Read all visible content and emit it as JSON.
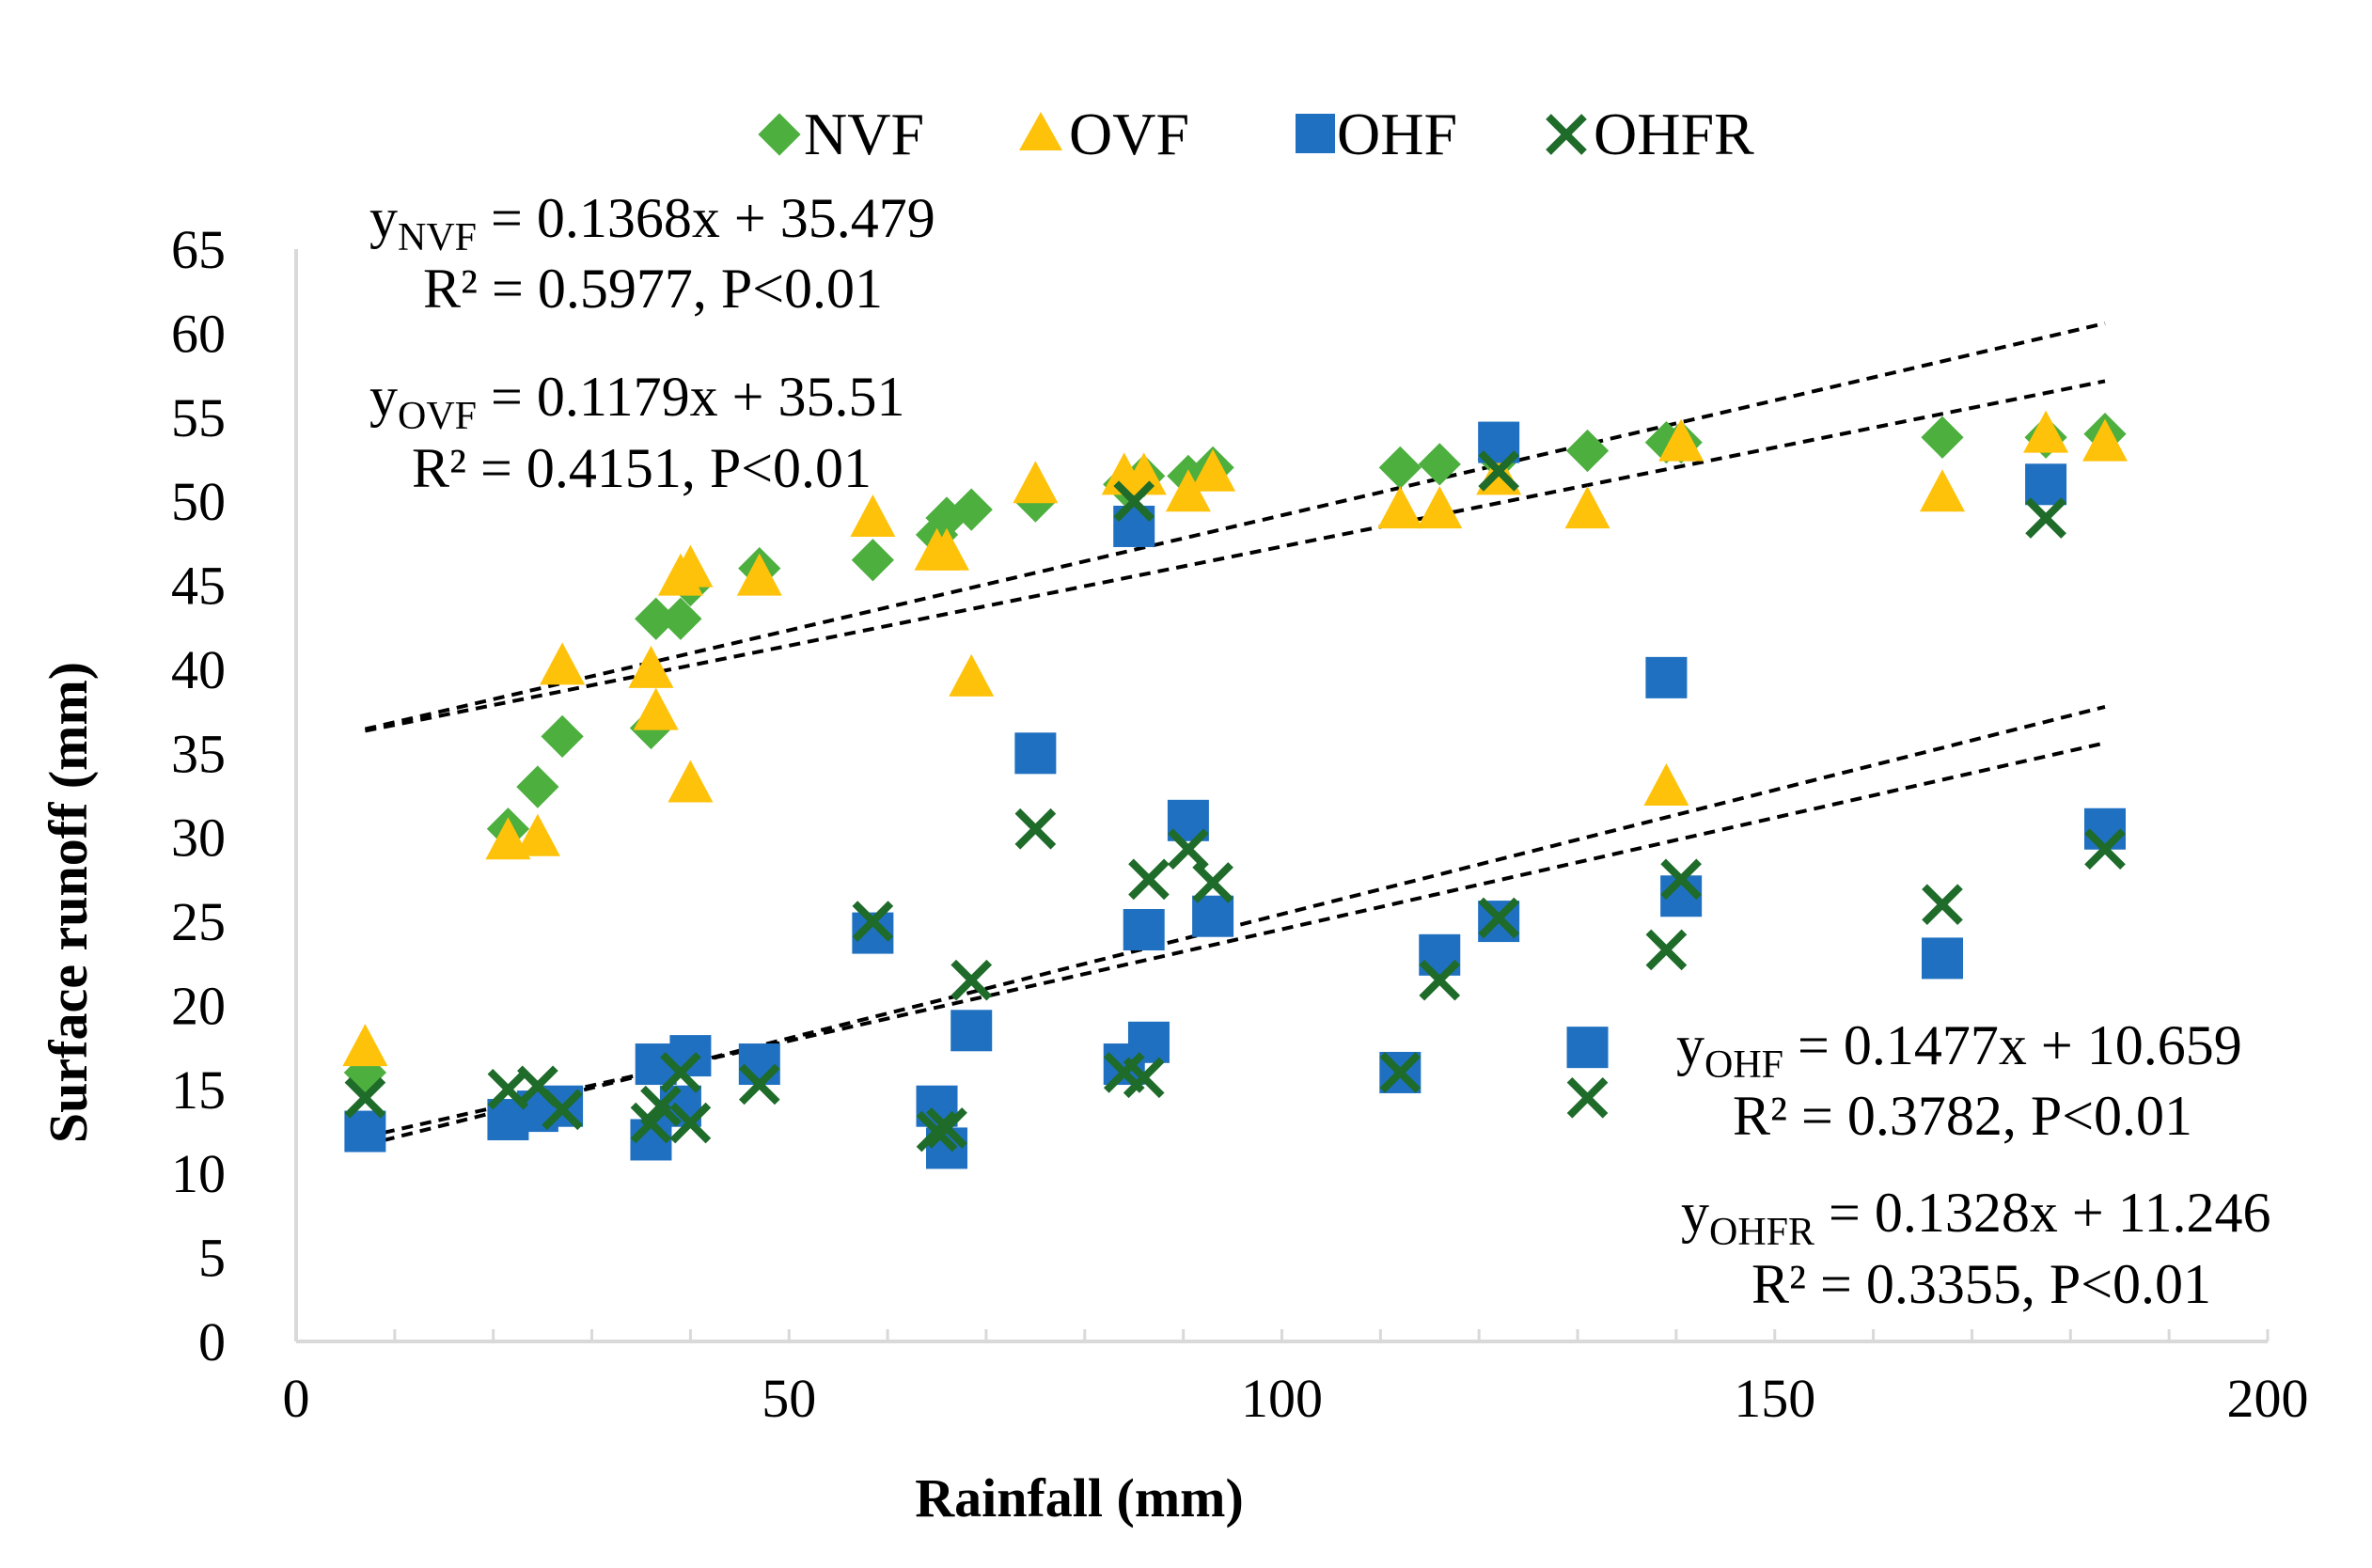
{
  "chart_data": {
    "type": "scatter",
    "xlabel": "Rainfall (mm)",
    "ylabel": "Surface runoff  (mm)",
    "xlim": [
      0,
      200
    ],
    "ylim": [
      0,
      65
    ],
    "xticks": [
      0,
      50,
      100,
      150,
      200
    ],
    "yticks": [
      0,
      5,
      10,
      15,
      20,
      25,
      30,
      35,
      40,
      45,
      50,
      55,
      60,
      65
    ],
    "grid": false,
    "legend_position": "top",
    "colors": {
      "NVF": "#4caf3e",
      "OVF": "#ffc20a",
      "OHF": "#1f70c1",
      "OHFR": "#1e6b2a",
      "trendline": "#000000"
    },
    "series": [
      {
        "name": "NVF",
        "marker": "diamond",
        "x": [
          7,
          21.5,
          24.5,
          27,
          36,
          36.5,
          39,
          40,
          47,
          58.5,
          65,
          66,
          68.5,
          75,
          84,
          86,
          90.5,
          93,
          112,
          116,
          122,
          131,
          139,
          140.5,
          167,
          177.5,
          183.5
        ],
        "y": [
          16,
          30.5,
          33,
          36,
          36.5,
          43,
          43,
          45,
          46,
          46.5,
          48,
          49,
          49.5,
          50,
          51,
          51.5,
          51.5,
          52,
          52,
          52.2,
          52.5,
          53,
          53.5,
          53.5,
          53.8,
          53.8,
          54
        ]
      },
      {
        "name": "OVF",
        "marker": "triangle",
        "x": [
          7,
          21.5,
          24.5,
          27,
          36,
          36.5,
          39,
          40,
          40,
          47,
          58.5,
          65,
          66,
          68.5,
          75,
          84,
          86,
          90.5,
          93,
          112,
          116,
          122,
          131,
          139,
          140.5,
          167,
          177.5,
          183.5
        ],
        "y": [
          17.5,
          29.8,
          30,
          40.2,
          40,
          37.5,
          45.5,
          46,
          33.2,
          45.5,
          49,
          47,
          47,
          39.5,
          51,
          51.5,
          51.5,
          50.5,
          51.7,
          49.5,
          49.5,
          51.5,
          49.5,
          33,
          53.5,
          50.5,
          54,
          53.5
        ]
      },
      {
        "name": "OHF",
        "marker": "square",
        "x": [
          7,
          21.5,
          24.5,
          27,
          36,
          36.5,
          39,
          40,
          47,
          58.5,
          65,
          66,
          68.5,
          75,
          84,
          85,
          86,
          86.5,
          90.5,
          93,
          112,
          116,
          122,
          122,
          131,
          139,
          140.5,
          167,
          177.5,
          183.5
        ],
        "y": [
          12.5,
          13.2,
          13.7,
          14,
          12,
          16.5,
          14,
          17,
          16.5,
          24.3,
          14,
          11.5,
          18.5,
          35,
          16.5,
          48.5,
          24.5,
          17.8,
          31,
          25.3,
          16,
          23,
          25,
          53.5,
          17.5,
          39.5,
          26.5,
          22.8,
          51,
          30.5
        ]
      },
      {
        "name": "OHFR",
        "marker": "x",
        "x": [
          7,
          21.5,
          24.5,
          27,
          36,
          37,
          39,
          40,
          47,
          58.5,
          65,
          66,
          68.5,
          75,
          84,
          85,
          86,
          86.5,
          90.5,
          93,
          112,
          116,
          122,
          122,
          131,
          139,
          140.5,
          167,
          177.5,
          183.5
        ],
        "y": [
          14.5,
          15,
          15.2,
          13.8,
          13,
          14,
          16,
          13,
          15.3,
          25,
          12.5,
          12.7,
          21.5,
          30.5,
          16,
          50,
          15.7,
          27.5,
          29.3,
          27.3,
          16,
          21.5,
          25.2,
          51.8,
          14.5,
          23.3,
          27.5,
          26,
          49,
          29.3
        ]
      }
    ],
    "trendlines": [
      {
        "series": "NVF",
        "slope": 0.1368,
        "intercept": 35.479,
        "x_range": [
          7,
          183.5
        ]
      },
      {
        "series": "OVF",
        "slope": 0.1179,
        "intercept": 35.51,
        "x_range": [
          7,
          183.5
        ]
      },
      {
        "series": "OHF",
        "slope": 0.1477,
        "intercept": 10.659,
        "x_range": [
          7,
          183.5
        ]
      },
      {
        "series": "OHFR",
        "slope": 0.1328,
        "intercept": 11.246,
        "x_range": [
          7,
          183.5
        ]
      }
    ],
    "annotations": {
      "nvf": {
        "y": "y",
        "sub": "NVF",
        "eq": " = 0.1368x + 35.479",
        "r2": "R² = 0.5977, P<0.01"
      },
      "ovf": {
        "y": "y",
        "sub": "OVF",
        "eq": " = 0.1179x + 35.51",
        "r2": "R² = 0.4151, P<0.01"
      },
      "ohf": {
        "y": "y",
        "sub": "OHF",
        "eq": " = 0.1477x + 10.659",
        "r2": "R² = 0.3782, P<0.01"
      },
      "ohfr": {
        "y": "y",
        "sub": "OHFR",
        "eq": " = 0.1328x + 11.246",
        "r2": "R² = 0.3355, P<0.01"
      }
    }
  }
}
